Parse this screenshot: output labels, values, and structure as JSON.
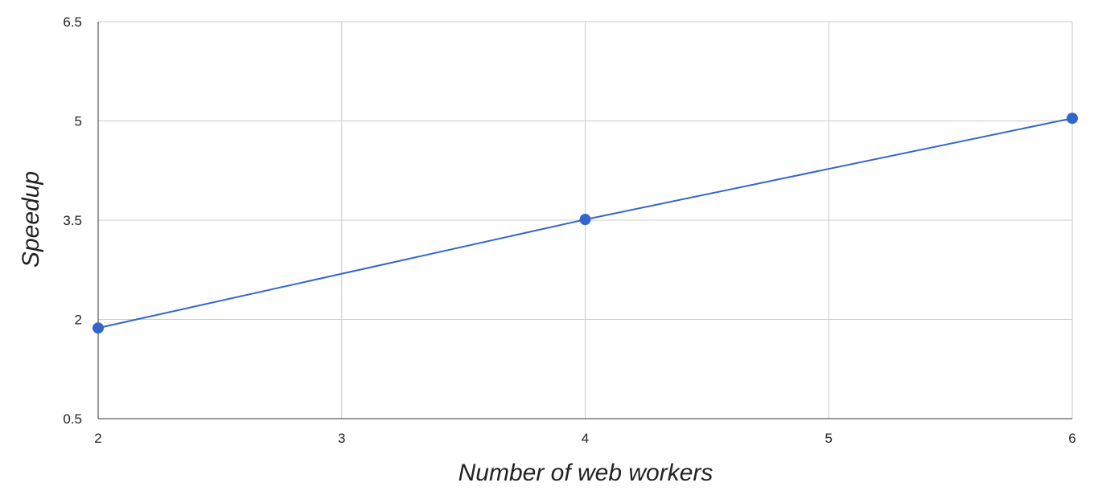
{
  "chart_data": {
    "type": "line",
    "title": "",
    "xlabel": "Number of web workers",
    "ylabel": "Speedup",
    "xlim": [
      2,
      6
    ],
    "ylim": [
      0.5,
      6.5
    ],
    "x_ticks": [
      "2",
      "3",
      "4",
      "5",
      "6"
    ],
    "y_ticks": [
      "0.5",
      "2",
      "3.5",
      "5",
      "6.5"
    ],
    "grid": true,
    "legend": "none",
    "series": [
      {
        "x": [
          2,
          4,
          6
        ],
        "values": [
          1.87,
          3.51,
          5.04
        ],
        "color": "#3366cc",
        "markers": true
      }
    ]
  }
}
